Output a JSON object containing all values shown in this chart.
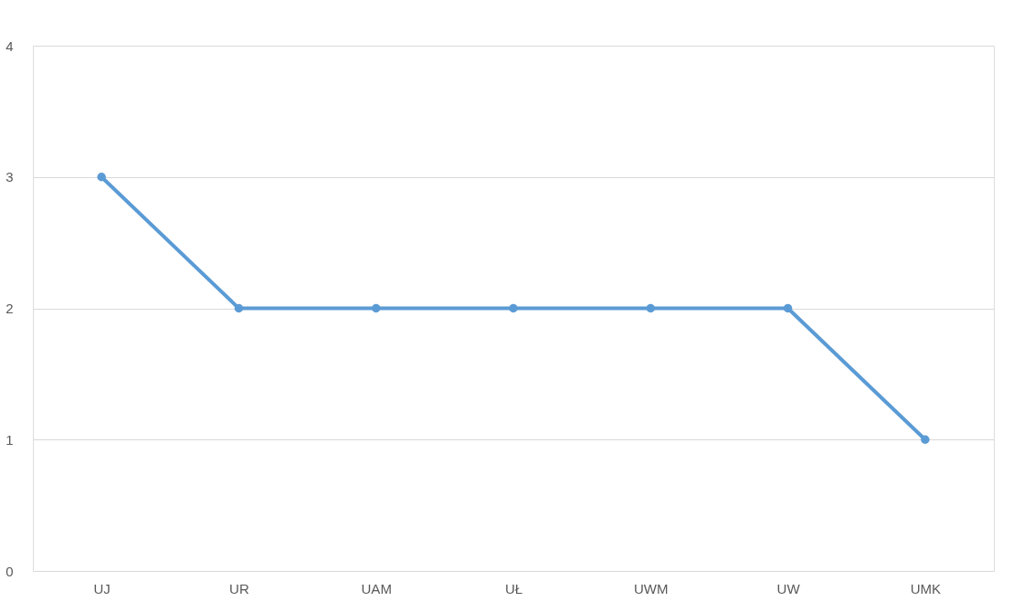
{
  "chart_data": {
    "type": "line",
    "categories": [
      "UJ",
      "UR",
      "UAM",
      "UŁ",
      "UWM",
      "UW",
      "UMK"
    ],
    "series": [
      {
        "color": "#5b9bd5",
        "values": [
          3,
          2,
          2,
          2,
          2,
          2,
          1
        ]
      }
    ],
    "ylim": [
      0,
      4
    ],
    "yticks": [
      0,
      1,
      2,
      3,
      4
    ],
    "grid": "y",
    "marker": "circle",
    "line_style": "solid"
  }
}
